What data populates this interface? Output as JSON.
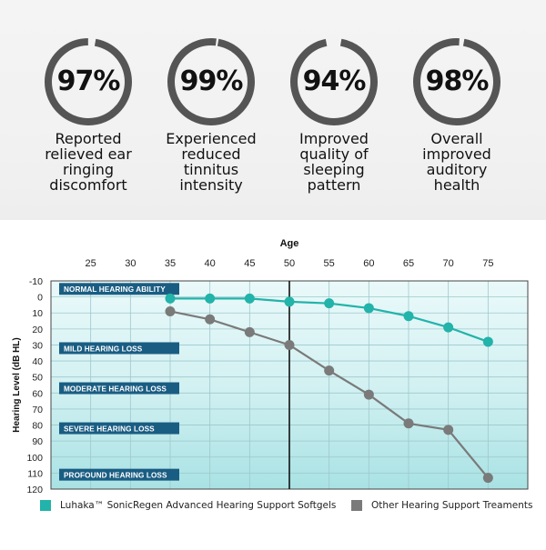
{
  "stats": [
    {
      "value": "97%",
      "fraction": 0.97,
      "caption": [
        "Reported",
        "relieved ear",
        "ringing",
        "discomfort"
      ]
    },
    {
      "value": "99%",
      "fraction": 0.99,
      "caption": [
        "Experienced",
        "reduced",
        "tinnitus",
        "intensity"
      ]
    },
    {
      "value": "94%",
      "fraction": 0.94,
      "caption": [
        "Improved",
        "quality of",
        "sleeping",
        "pattern"
      ]
    },
    {
      "value": "98%",
      "fraction": 0.98,
      "caption": [
        "Overall",
        "improved",
        "auditory",
        "health"
      ]
    }
  ],
  "colors": {
    "ring": "#555555",
    "teal": "#22b3aa",
    "gray": "#7a7a7a",
    "band_label_bg": "#1a5d83",
    "divider": "#111111"
  },
  "chart_data": {
    "type": "line",
    "xlabel": "Age",
    "ylabel": "Hearing Level (dB HL)",
    "x_ticks": [
      25,
      30,
      35,
      40,
      45,
      50,
      55,
      60,
      65,
      70,
      75
    ],
    "y_ticks": [
      -10,
      0,
      10,
      20,
      30,
      40,
      50,
      60,
      70,
      80,
      90,
      100,
      110,
      120
    ],
    "xlim": [
      20,
      80
    ],
    "ylim": [
      -10,
      120
    ],
    "y_inverted": true,
    "highlight_x": 50,
    "hearing_zones": [
      {
        "label": "NORMAL HEARING ABILITY",
        "at": -5
      },
      {
        "label": "MILD HEARING LOSS",
        "at": 32
      },
      {
        "label": "MODERATE HEARING LOSS",
        "at": 57
      },
      {
        "label": "SEVERE HEARING LOSS",
        "at": 82
      },
      {
        "label": "PROFOUND HEARING LOSS",
        "at": 111
      }
    ],
    "series": [
      {
        "name": "Luhaka™ SonicRegen Advanced Hearing Support Softgels",
        "color": "#22b3aa",
        "x": [
          35,
          40,
          45,
          50,
          55,
          60,
          65,
          70,
          75
        ],
        "y": [
          1,
          1,
          1,
          3,
          4,
          7,
          12,
          19,
          28
        ]
      },
      {
        "name": "Other Hearing Support Treaments",
        "color": "#7a7a7a",
        "x": [
          35,
          40,
          45,
          50,
          55,
          60,
          65,
          70,
          75
        ],
        "y": [
          9,
          14,
          22,
          30,
          46,
          61,
          79,
          83,
          113
        ]
      }
    ]
  }
}
